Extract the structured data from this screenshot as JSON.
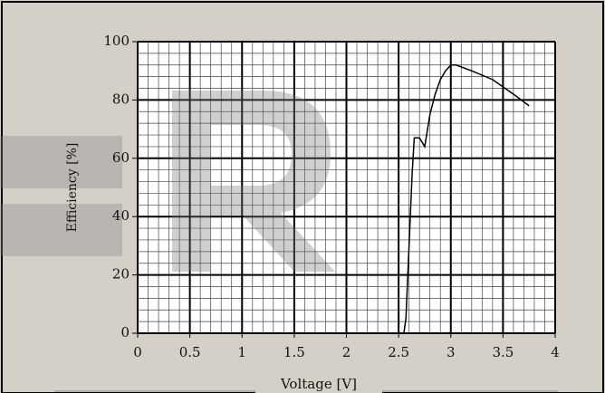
{
  "chart_data": {
    "type": "line",
    "xlabel": "Voltage [V]",
    "ylabel": "Efficiency [%]",
    "x": [
      2.55,
      2.57,
      2.6,
      2.63,
      2.65,
      2.7,
      2.75,
      2.8,
      2.85,
      2.9,
      2.95,
      3.0,
      3.05,
      3.2,
      3.4,
      3.6,
      3.75
    ],
    "series": [
      {
        "color": "#000000",
        "values": [
          0,
          5,
          30,
          55,
          67,
          67,
          64,
          75,
          82,
          87,
          90,
          92,
          92,
          90,
          87,
          82,
          78
        ]
      }
    ],
    "xlim": [
      0,
      4
    ],
    "xticks": [
      0,
      0.5,
      1,
      1.5,
      2,
      2.5,
      3,
      3.5,
      4
    ],
    "ylim": [
      0,
      100
    ],
    "yticks": [
      0,
      20,
      40,
      60,
      80,
      100
    ],
    "grid": true
  }
}
